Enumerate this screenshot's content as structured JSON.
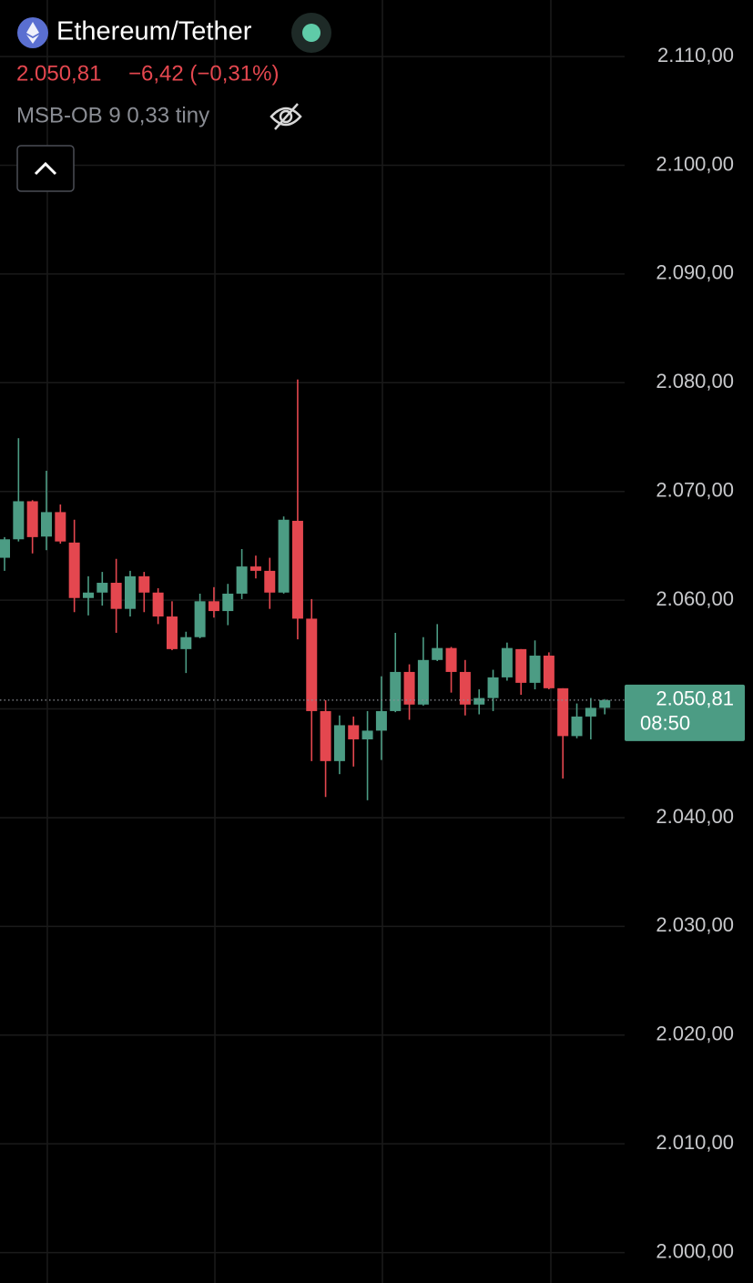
{
  "chart_data": {
    "type": "candlestick",
    "title": "Ethereum/Tether",
    "price_text": "2.050,81",
    "change_text": "−6,42 (−0,31%)",
    "indicator_text": "MSB-OB 9 0,33 tiny",
    "up_color": "#4c9c84",
    "down_color": "#e4474f",
    "grid": true,
    "ylim": [
      1997.2,
      2115.2
    ],
    "yticks": [
      {
        "value": 2110,
        "label": "2.110,00"
      },
      {
        "value": 2100,
        "label": "2.100,00"
      },
      {
        "value": 2090,
        "label": "2.090,00"
      },
      {
        "value": 2080,
        "label": "2.080,00"
      },
      {
        "value": 2070,
        "label": "2.070,00"
      },
      {
        "value": 2060,
        "label": "2.060,00"
      },
      {
        "value": 2050,
        "label": "2.050,00"
      },
      {
        "value": 2040,
        "label": "2.040,00"
      },
      {
        "value": 2030,
        "label": "2.030,00"
      },
      {
        "value": 2020,
        "label": "2.020,00"
      },
      {
        "value": 2010,
        "label": "2.010,00"
      },
      {
        "value": 2000,
        "label": "2.000,00"
      }
    ],
    "last_price": {
      "value": 2050.81,
      "label": "2.050,81"
    },
    "countdown": "08:50",
    "open": [
      2063.9,
      2065.6,
      2069.1,
      2065.85,
      2068.1,
      2065.3,
      2060.2,
      2060.7,
      2061.6,
      2059.2,
      2062.2,
      2060.7,
      2058.5,
      2055.5,
      2056.6,
      2059.9,
      2059.0,
      2060.6,
      2063.1,
      2062.7,
      2060.7,
      2067.3,
      2058.3,
      2049.8,
      2045.2,
      2048.5,
      2047.2,
      2048.0,
      2049.8,
      2053.4,
      2050.4,
      2054.5,
      2055.6,
      2053.4,
      2050.4,
      2051.0,
      2052.9,
      2055.5,
      2052.4,
      2054.9,
      2051.9,
      2047.5,
      2049.3,
      2050.1
    ],
    "high": [
      2065.8,
      2074.9,
      2069.2,
      2071.9,
      2068.8,
      2067.4,
      2062.2,
      2062.6,
      2063.8,
      2062.7,
      2062.6,
      2061.1,
      2059.9,
      2057.1,
      2060.6,
      2061.2,
      2061.5,
      2064.7,
      2064.1,
      2063.9,
      2067.7,
      2080.3,
      2060.1,
      2050.8,
      2049.4,
      2049.3,
      2049.8,
      2053.0,
      2057.0,
      2054.1,
      2056.6,
      2057.8,
      2055.7,
      2054.5,
      2051.8,
      2053.6,
      2056.1,
      2055.5,
      2056.3,
      2055.2,
      2051.9,
      2050.5,
      2051.0,
      2050.9
    ],
    "low": [
      2062.7,
      2065.4,
      2064.3,
      2064.6,
      2065.2,
      2058.9,
      2058.6,
      2059.5,
      2057.0,
      2058.5,
      2058.9,
      2057.8,
      2055.4,
      2053.3,
      2056.5,
      2058.4,
      2057.7,
      2060.1,
      2062.0,
      2059.2,
      2060.6,
      2056.4,
      2045.2,
      2041.9,
      2044.0,
      2044.7,
      2041.6,
      2045.3,
      2049.7,
      2049.0,
      2050.3,
      2054.4,
      2051.5,
      2049.4,
      2049.5,
      2049.8,
      2052.6,
      2051.3,
      2051.8,
      2051.8,
      2043.6,
      2047.3,
      2047.2,
      2049.5
    ],
    "close": [
      2065.6,
      2069.1,
      2065.8,
      2068.1,
      2065.4,
      2060.2,
      2060.7,
      2061.6,
      2059.2,
      2062.2,
      2060.7,
      2058.5,
      2055.5,
      2056.6,
      2059.9,
      2059.0,
      2060.6,
      2063.1,
      2062.7,
      2060.7,
      2067.4,
      2058.3,
      2049.8,
      2045.2,
      2048.5,
      2047.2,
      2048.0,
      2049.8,
      2053.4,
      2050.4,
      2054.5,
      2055.6,
      2053.4,
      2050.4,
      2051.0,
      2052.9,
      2055.6,
      2052.4,
      2054.9,
      2051.9,
      2047.5,
      2049.3,
      2050.1,
      2050.81
    ]
  }
}
